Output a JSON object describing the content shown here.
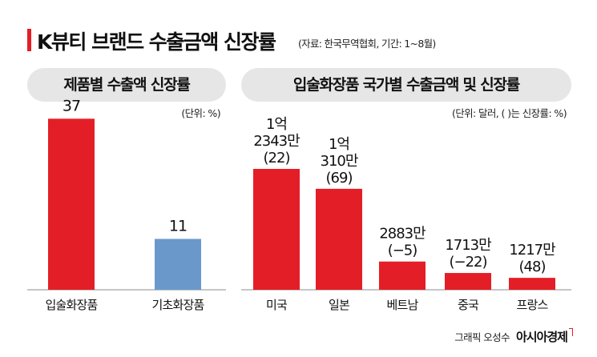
{
  "title": "K뷰티 브랜드 수출금액 신장률",
  "subtitle": "(자료: 한국무역협회, 기간: 1~8월)",
  "accent_color": "#e41e26",
  "secondary_color": "#6a98cb",
  "footer": {
    "credit": "그래픽 오성수",
    "brand": "아시아경제"
  },
  "chart_data": [
    {
      "type": "bar",
      "title": "제품별 수출액 신장률",
      "unit": "(단위: %)",
      "categories": [
        "입술화장품",
        "기초화장품"
      ],
      "values": [
        37,
        11
      ],
      "value_labels": [
        "37",
        "11"
      ],
      "colors": [
        "#e41e26",
        "#6a98cb"
      ],
      "ylim": [
        0,
        40
      ],
      "grid": false
    },
    {
      "type": "bar",
      "title": "입술화장품 국가별 수출금액 및 신장률",
      "unit": "(단위: 달러, ( )는 신장률: %)",
      "categories": [
        "미국",
        "일본",
        "베트남",
        "중국",
        "프랑스"
      ],
      "values": [
        123430000,
        103100000,
        28830000,
        17130000,
        12170000
      ],
      "growth": [
        22,
        69,
        -5,
        -22,
        48
      ],
      "value_labels": [
        [
          "1억",
          "2343만",
          "(22)"
        ],
        [
          "1억",
          "310만",
          "(69)"
        ],
        [
          "2883만",
          "(−5)"
        ],
        [
          "1713만",
          "(−22)"
        ],
        [
          "1217만",
          "(48)"
        ]
      ],
      "colors": [
        "#e41e26",
        "#e41e26",
        "#e41e26",
        "#e41e26",
        "#e41e26"
      ],
      "grid": false
    }
  ]
}
